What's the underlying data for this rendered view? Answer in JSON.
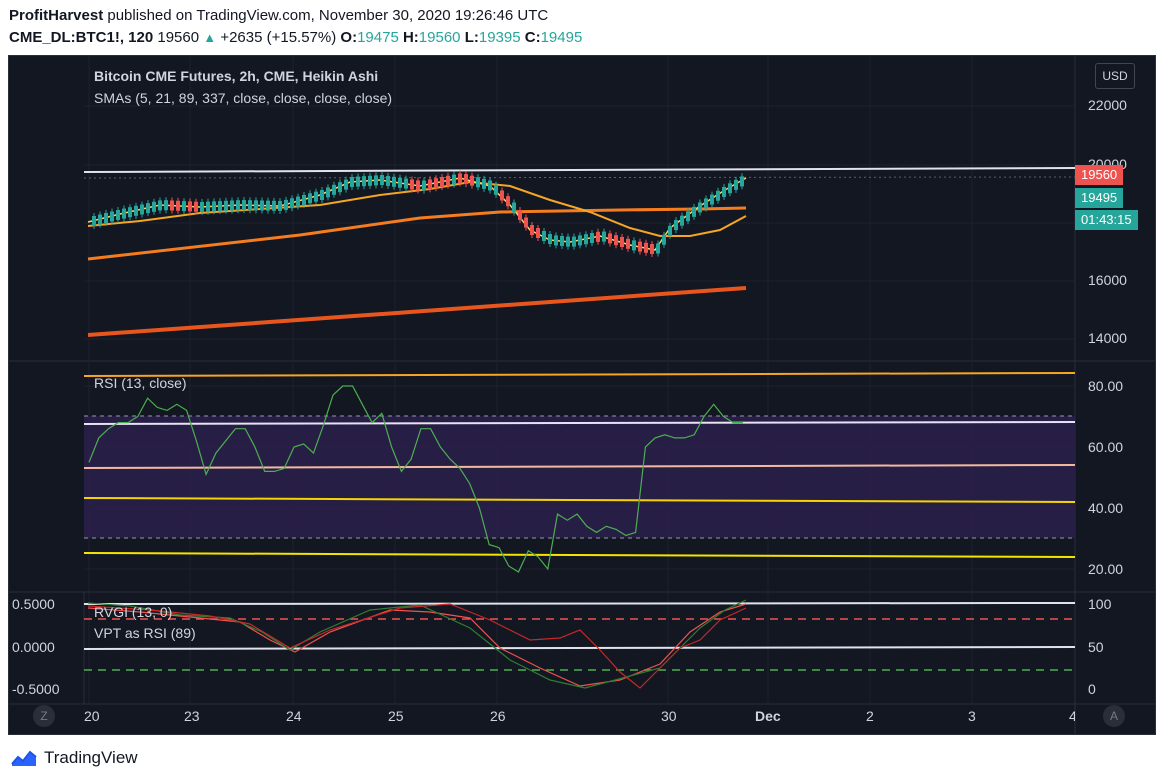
{
  "header": {
    "author": "ProfitHarvest",
    "published_text": "published on TradingView.com, November 30, 2020 19:26:46 UTC",
    "symbol": "CME_DL:BTC1!, 120",
    "last_price": "19560",
    "change": "+2635 (+15.57%)",
    "open_label": "O:",
    "open": "19475",
    "high_label": "H:",
    "high": "19560",
    "low_label": "L:",
    "low": "19395",
    "close_label": "C:",
    "close": "19495"
  },
  "main_pane": {
    "title": "Bitcoin CME Futures, 2h, CME, Heikin Ashi",
    "indicator": "SMAs (5, 21, 89, 337, close, close, close, close)",
    "currency_button": "USD",
    "price_ticks": [
      "22000",
      "20000",
      "16000",
      "14000"
    ],
    "price_tag_last": "19560",
    "price_tag_close": "19495",
    "countdown": "01:43:15"
  },
  "rsi_pane": {
    "title": "RSI (13, close)",
    "ticks": [
      "80.00",
      "60.00",
      "40.00",
      "20.00"
    ],
    "rsi_values": [
      55,
      63,
      66,
      68,
      68,
      70,
      76,
      73,
      72,
      74,
      72,
      62,
      51,
      58,
      62,
      66,
      66,
      60,
      52,
      52,
      53,
      60,
      61,
      58,
      67,
      77,
      80,
      80,
      74,
      68,
      71,
      60,
      52,
      56,
      66,
      66,
      60,
      56,
      53,
      48,
      40,
      28,
      27,
      21,
      19,
      26,
      24,
      20,
      38,
      36,
      38,
      34,
      32,
      34,
      33,
      31,
      32,
      60,
      63,
      64,
      63,
      63,
      64,
      70,
      74,
      70,
      68,
      68
    ]
  },
  "osc_pane": {
    "title1": "RVGI (13, 0)",
    "title2": "VPT as RSI (89)",
    "left_ticks": [
      "0.5000",
      "0.0000",
      "-0.5000"
    ],
    "right_ticks": [
      "100",
      "50",
      "0"
    ]
  },
  "time_axis": {
    "labels": [
      "20",
      "23",
      "24",
      "25",
      "26",
      "30",
      "Dec",
      "2",
      "3",
      "4"
    ],
    "left_button": "Z",
    "right_button": "A"
  },
  "footer": {
    "brand": "TradingView"
  },
  "colors": {
    "background": "#131722",
    "bull": "#26a69a",
    "bear": "#ef5350",
    "sma5": "#f9d56b",
    "sma21": "#f5a623",
    "sma89": "#f57c1f",
    "sma337": "#e8561e",
    "rsi": "#4caf50",
    "rsi_band": "#2a1f4a"
  }
}
